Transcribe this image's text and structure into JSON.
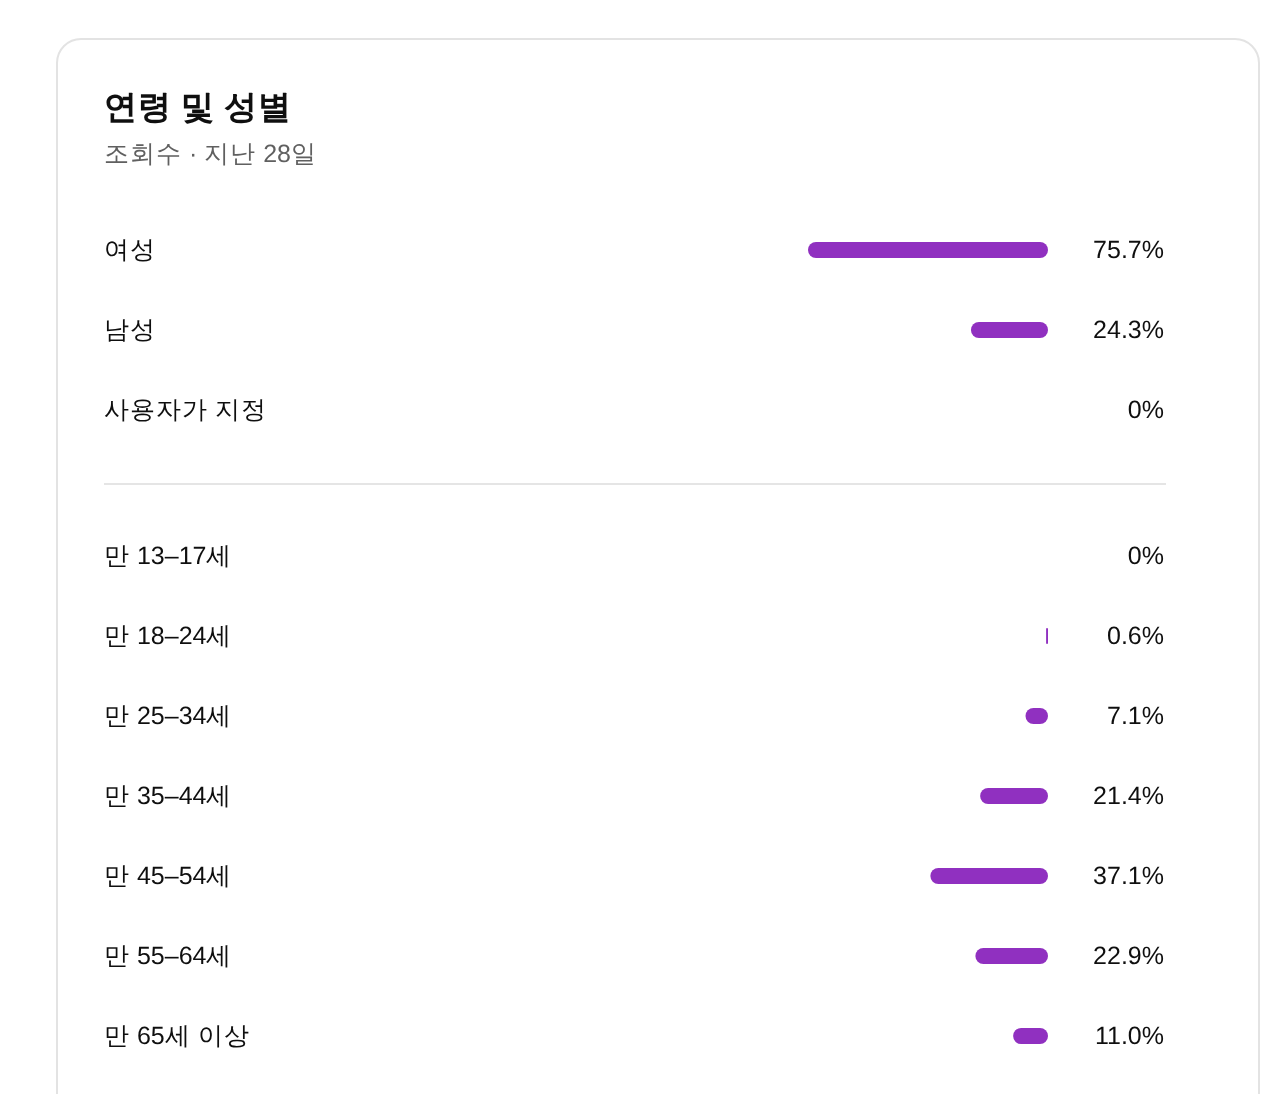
{
  "chart_data": {
    "type": "bar",
    "orientation": "horizontal",
    "title": "연령 및 성별",
    "subtitle": "조회수 · 지난 28일",
    "categories": [
      "여성",
      "남성",
      "사용자가 지정",
      null,
      "만 13–17세",
      "만 18–24세",
      "만 25–34세",
      "만 35–44세",
      "만 45–54세",
      "만 55–64세",
      "만 65세 이상"
    ],
    "values": [
      75.7,
      24.3,
      0,
      null,
      0,
      0.6,
      7.1,
      21.4,
      37.1,
      22.9,
      11.0
    ],
    "value_labels": [
      "75.7%",
      "24.3%",
      "0%",
      null,
      "0%",
      "0.6%",
      "7.1%",
      "21.4%",
      "37.1%",
      "22.9%",
      "11.0%"
    ],
    "color": "#9030c0",
    "tick_labels": false
  }
}
